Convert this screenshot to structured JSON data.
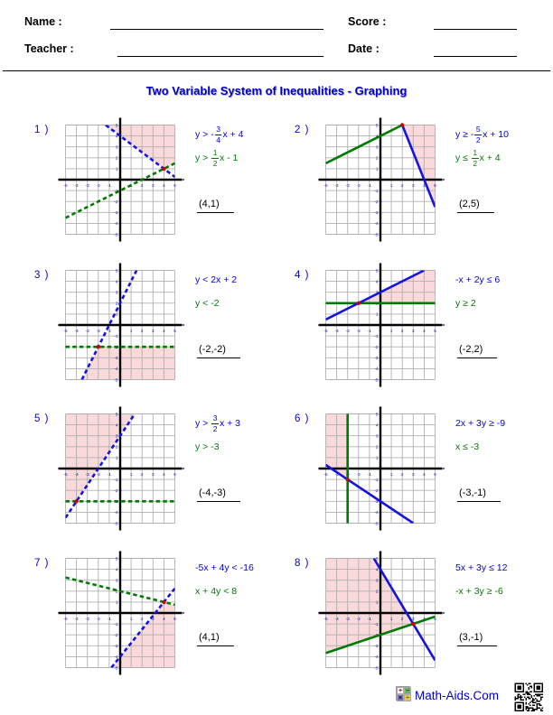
{
  "header": {
    "name_label": "Name :",
    "teacher_label": "Teacher :",
    "score_label": "Score :",
    "date_label": "Date :",
    "name_value": "",
    "teacher_value": "",
    "score_value": "",
    "date_value": ""
  },
  "title": "Two Variable System of Inequalities - Graphing",
  "palette": {
    "blue_text": "#0000cc",
    "ineq_blue": "#0000e0",
    "ineq_green": "#007a00",
    "line_blue": "#1414e0",
    "line_green": "#007a00",
    "pink": "#f9d9d9",
    "red_dot": "#cc0000",
    "grid": "#b0b0b0",
    "tick": "#0000dd",
    "axis": "#000000"
  },
  "axis_range": [
    -5,
    5
  ],
  "problems": [
    {
      "num": "1 )",
      "answer": "(4,1)",
      "ineq1": {
        "color": "#0000e0",
        "parts": [
          {
            "t": "y > -"
          },
          {
            "f": [
              "3",
              "4"
            ]
          },
          {
            "t": "x + 4"
          }
        ]
      },
      "ineq2": {
        "color": "#007a00",
        "parts": [
          {
            "t": "y > "
          },
          {
            "f": [
              "1",
              "2"
            ]
          },
          {
            "t": "x - 1"
          }
        ]
      },
      "graph": {
        "region": [
          [
            -1.333,
            5
          ],
          [
            4,
            1
          ],
          [
            5,
            1.5
          ],
          [
            5,
            5
          ]
        ],
        "lines": [
          {
            "c": "green",
            "d": true,
            "pts": [
              -5,
              -3.5,
              5,
              1.5
            ]
          },
          {
            "c": "blue",
            "d": true,
            "pts": [
              -1.333,
              5,
              5,
              0.25
            ]
          }
        ],
        "point": [
          4,
          1
        ]
      }
    },
    {
      "num": "2 )",
      "answer": "(2,5)",
      "ineq1": {
        "color": "#0000e0",
        "parts": [
          {
            "t": "y ≥ -"
          },
          {
            "f": [
              "5",
              "2"
            ]
          },
          {
            "t": "x + 10"
          }
        ]
      },
      "ineq2": {
        "color": "#007a00",
        "parts": [
          {
            "t": "y ≤ "
          },
          {
            "f": [
              "1",
              "2"
            ]
          },
          {
            "t": "x + 4"
          }
        ]
      },
      "graph": {
        "region": [
          [
            2,
            5
          ],
          [
            5,
            -2.5
          ],
          [
            5,
            5
          ]
        ],
        "lines": [
          {
            "c": "green",
            "d": false,
            "pts": [
              -5,
              1.5,
              2,
              5
            ]
          },
          {
            "c": "blue",
            "d": false,
            "pts": [
              2,
              5,
              5,
              -2.5
            ]
          }
        ],
        "point": [
          2,
          5
        ]
      }
    },
    {
      "num": "3 )",
      "answer": "(-2,-2)",
      "ineq1": {
        "color": "#0000e0",
        "parts": [
          {
            "t": "y < 2x + 2"
          }
        ]
      },
      "ineq2": {
        "color": "#007a00",
        "parts": [
          {
            "t": "y < -2"
          }
        ]
      },
      "graph": {
        "region": [
          [
            -2,
            -2
          ],
          [
            5,
            -2
          ],
          [
            5,
            -5
          ],
          [
            -3.5,
            -5
          ]
        ],
        "lines": [
          {
            "c": "green",
            "d": true,
            "pts": [
              -5,
              -2,
              5,
              -2
            ]
          },
          {
            "c": "blue",
            "d": true,
            "pts": [
              -3.5,
              -5,
              1.5,
              5
            ]
          }
        ],
        "point": [
          -2,
          -2
        ]
      }
    },
    {
      "num": "4 )",
      "answer": "(-2,2)",
      "ineq1": {
        "color": "#0000e0",
        "parts": [
          {
            "t": "-x + 2y ≤ 6"
          }
        ]
      },
      "ineq2": {
        "color": "#007a00",
        "parts": [
          {
            "t": "y ≥ 2"
          }
        ]
      },
      "graph": {
        "region": [
          [
            -2,
            2
          ],
          [
            4,
            5
          ],
          [
            5,
            5
          ],
          [
            5,
            2
          ]
        ],
        "lines": [
          {
            "c": "green",
            "d": false,
            "pts": [
              -5,
              2,
              5,
              2
            ]
          },
          {
            "c": "blue",
            "d": false,
            "pts": [
              -5,
              0.5,
              4,
              5
            ]
          }
        ],
        "point": [
          -2,
          2
        ]
      }
    },
    {
      "num": "5 )",
      "answer": "(-4,-3)",
      "ineq1": {
        "color": "#0000e0",
        "parts": [
          {
            "t": "y > "
          },
          {
            "f": [
              "3",
              "2"
            ]
          },
          {
            "t": "x + 3"
          }
        ]
      },
      "ineq2": {
        "color": "#007a00",
        "parts": [
          {
            "t": "y > -3"
          }
        ]
      },
      "graph": {
        "region": [
          [
            -4,
            -3
          ],
          [
            1.333,
            5
          ],
          [
            -5,
            5
          ],
          [
            -5,
            -3
          ]
        ],
        "lines": [
          {
            "c": "green",
            "d": true,
            "pts": [
              -5,
              -3,
              5,
              -3
            ]
          },
          {
            "c": "blue",
            "d": true,
            "pts": [
              -5,
              -4.5,
              1.333,
              5
            ]
          }
        ],
        "point": [
          -4,
          -3
        ]
      }
    },
    {
      "num": "6 )",
      "answer": "(-3,-1)",
      "ineq1": {
        "color": "#0000e0",
        "parts": [
          {
            "t": "2x + 3y ≥ -9"
          }
        ]
      },
      "ineq2": {
        "color": "#007a00",
        "parts": [
          {
            "t": "x ≤ -3"
          }
        ]
      },
      "graph": {
        "region": [
          [
            -3,
            -1
          ],
          [
            -5,
            0.333
          ],
          [
            -5,
            5
          ],
          [
            -3,
            5
          ]
        ],
        "lines": [
          {
            "c": "blue",
            "d": false,
            "pts": [
              -5,
              0.333,
              3,
              -5
            ]
          },
          {
            "c": "green",
            "d": false,
            "pts": [
              -3,
              -5,
              -3,
              5
            ]
          }
        ],
        "point": [
          -3,
          -1
        ]
      }
    },
    {
      "num": "7 )",
      "answer": "(4,1)",
      "ineq1": {
        "color": "#0000e0",
        "parts": [
          {
            "t": "-5x + 4y < -16"
          }
        ]
      },
      "ineq2": {
        "color": "#007a00",
        "parts": [
          {
            "t": "x + 4y < 8"
          }
        ]
      },
      "graph": {
        "region": [
          [
            4,
            1
          ],
          [
            5,
            0.75
          ],
          [
            5,
            -5
          ],
          [
            -0.8,
            -5
          ]
        ],
        "lines": [
          {
            "c": "green",
            "d": true,
            "pts": [
              -5,
              3.25,
              5,
              0.75
            ]
          },
          {
            "c": "blue",
            "d": true,
            "pts": [
              -0.8,
              -5,
              5,
              2.25
            ]
          }
        ],
        "point": [
          4,
          1
        ]
      }
    },
    {
      "num": "8 )",
      "answer": "(3,-1)",
      "ineq1": {
        "color": "#0000e0",
        "parts": [
          {
            "t": "5x + 3y ≤ 12"
          }
        ]
      },
      "ineq2": {
        "color": "#007a00",
        "parts": [
          {
            "t": "-x + 3y ≥ -6"
          }
        ]
      },
      "graph": {
        "region": [
          [
            3,
            -1
          ],
          [
            -5,
            -3.667
          ],
          [
            -5,
            5
          ],
          [
            -0.6,
            5
          ]
        ],
        "lines": [
          {
            "c": "green",
            "d": false,
            "pts": [
              -5,
              -3.667,
              5,
              -0.333
            ]
          },
          {
            "c": "blue",
            "d": false,
            "pts": [
              -0.6,
              5,
              5,
              -4.333
            ]
          }
        ],
        "point": [
          3,
          -1
        ]
      }
    }
  ],
  "footer": {
    "brand": "Math-Aids.Com",
    "logo_signs": [
      "+",
      "−",
      "×",
      "÷"
    ],
    "logo_colors": [
      {
        "bg": "#ffffff",
        "fg": "#cc0000"
      },
      {
        "bg": "#66b366",
        "fg": "#004d00"
      },
      {
        "bg": "#7a7ac2",
        "fg": "#000066"
      },
      {
        "bg": "#e6c84d",
        "fg": "#806600"
      }
    ]
  }
}
